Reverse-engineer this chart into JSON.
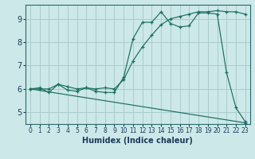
{
  "xlabel": "Humidex (Indice chaleur)",
  "xlim": [
    -0.5,
    23.5
  ],
  "ylim": [
    4.5,
    9.6
  ],
  "yticks": [
    5,
    6,
    7,
    8,
    9
  ],
  "xticks": [
    0,
    1,
    2,
    3,
    4,
    5,
    6,
    7,
    8,
    9,
    10,
    11,
    12,
    13,
    14,
    15,
    16,
    17,
    18,
    19,
    20,
    21,
    22,
    23
  ],
  "bg_color": "#cce8e8",
  "grid_color": "#aacccc",
  "line_color": "#1a6e5e",
  "line1_x": [
    0,
    1,
    2,
    3,
    4,
    5,
    6,
    7,
    8,
    9,
    10,
    11,
    12,
    13,
    14,
    15,
    16,
    17,
    18,
    19,
    20,
    21,
    22,
    23
  ],
  "line1_y": [
    6.0,
    6.05,
    5.85,
    6.2,
    5.95,
    5.9,
    6.05,
    5.9,
    5.85,
    5.85,
    6.5,
    8.15,
    8.85,
    8.85,
    9.3,
    8.8,
    8.65,
    8.7,
    9.25,
    9.25,
    9.2,
    6.7,
    5.2,
    4.6
  ],
  "line2_x": [
    0,
    1,
    2,
    3,
    4,
    5,
    6,
    7,
    8,
    9,
    10,
    11,
    12,
    13,
    14,
    15,
    16,
    17,
    18,
    19,
    20,
    21,
    22,
    23
  ],
  "line2_y": [
    6.0,
    6.0,
    6.0,
    6.2,
    6.1,
    6.0,
    6.05,
    6.0,
    6.05,
    6.0,
    6.4,
    7.2,
    7.8,
    8.3,
    8.75,
    9.0,
    9.1,
    9.2,
    9.3,
    9.3,
    9.35,
    9.3,
    9.3,
    9.2
  ],
  "line3_x": [
    0,
    23
  ],
  "line3_y": [
    6.0,
    4.55
  ]
}
